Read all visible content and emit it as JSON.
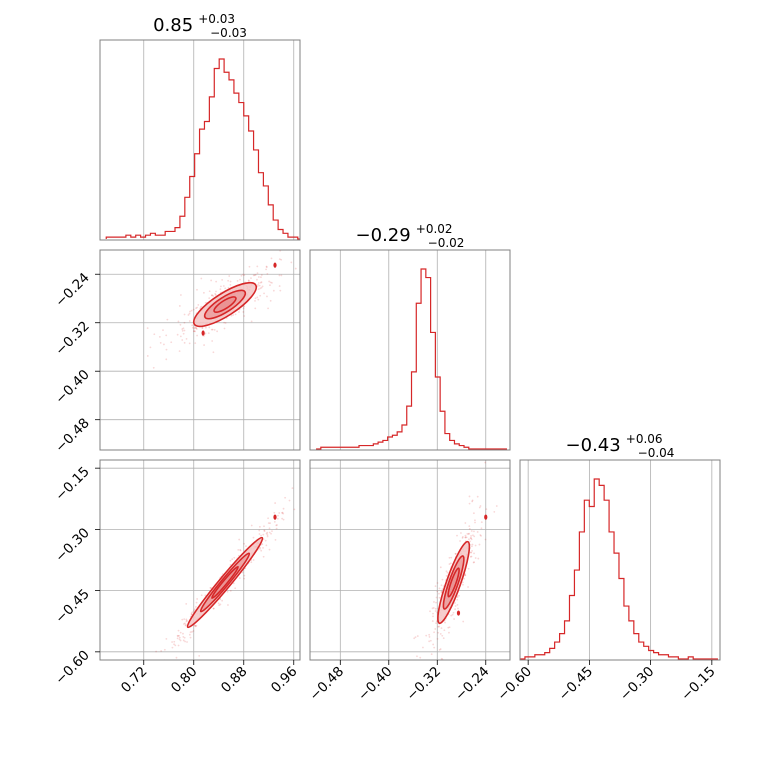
{
  "colors": {
    "series": "#d62728",
    "fill_outer": "#f4c4c4",
    "fill_inner": "#e88a8a",
    "grid": "#b0b0b0",
    "frame": "#808080"
  },
  "chart_data": {
    "type": "corner",
    "parameters": [
      {
        "median": "0.85",
        "plus": "+0.03",
        "minus": "−0.03",
        "range": [
          0.65,
          0.97
        ],
        "ticks": [
          "0.72",
          "0.80",
          "0.88",
          "0.96"
        ]
      },
      {
        "median": "−0.29",
        "plus": "+0.02",
        "minus": "−0.02",
        "range": [
          -0.53,
          -0.2
        ],
        "ticks": [
          "−0.48",
          "−0.40",
          "−0.32",
          "−0.24"
        ]
      },
      {
        "median": "−0.43",
        "plus": "+0.06",
        "minus": "−0.04",
        "range": [
          -0.62,
          -0.13
        ],
        "ticks": [
          "−0.60",
          "−0.45",
          "−0.30",
          "−0.15"
        ]
      }
    ],
    "histograms": [
      {
        "bins": [
          0.66,
          0.99
        ],
        "counts": [
          1,
          1,
          1,
          1,
          2,
          1,
          2,
          1,
          2,
          3,
          2,
          2,
          4,
          4,
          6,
          12,
          22,
          33,
          45,
          58,
          62,
          75,
          90,
          95,
          88,
          84,
          77,
          72,
          65,
          57,
          47,
          35,
          28,
          18,
          10,
          5,
          3,
          1,
          1,
          0,
          0,
          0
        ]
      },
      {
        "bins": [
          -0.52,
          -0.205
        ],
        "counts": [
          0,
          1,
          1,
          1,
          1,
          1,
          1,
          1,
          1,
          2,
          2,
          2,
          3,
          4,
          5,
          7,
          8,
          10,
          14,
          25,
          45,
          85,
          105,
          100,
          68,
          42,
          22,
          9,
          5,
          3,
          2,
          1,
          0,
          0,
          0,
          0,
          0,
          0,
          0,
          0
        ]
      },
      {
        "bins": [
          -0.62,
          -0.135
        ],
        "counts": [
          0,
          1,
          1,
          2,
          2,
          3,
          5,
          8,
          12,
          18,
          30,
          42,
          60,
          75,
          72,
          85,
          82,
          75,
          60,
          50,
          38,
          25,
          18,
          12,
          8,
          6,
          4,
          3,
          2,
          2,
          1,
          1,
          0,
          0,
          1,
          0,
          0,
          0,
          0,
          0
        ]
      }
    ],
    "correlations": [
      {
        "pair": [
          0,
          1
        ],
        "center": [
          0.85,
          -0.29
        ],
        "sx": 0.025,
        "sy": 0.018,
        "rho": 0.8,
        "peaks": [
          [
            0.93,
            -0.225
          ],
          [
            0.815,
            -0.337
          ]
        ]
      },
      {
        "pair": [
          0,
          2
        ],
        "center": [
          0.85,
          -0.43
        ],
        "sx": 0.03,
        "sy": 0.055,
        "rho": 0.98,
        "peaks": [
          [
            0.93,
            -0.27
          ]
        ]
      },
      {
        "pair": [
          1,
          2
        ],
        "center": [
          -0.293,
          -0.43
        ],
        "sx": 0.013,
        "sy": 0.05,
        "rho": 0.88,
        "peaks": [
          [
            -0.24,
            -0.27
          ],
          [
            -0.285,
            -0.505
          ]
        ]
      }
    ]
  }
}
